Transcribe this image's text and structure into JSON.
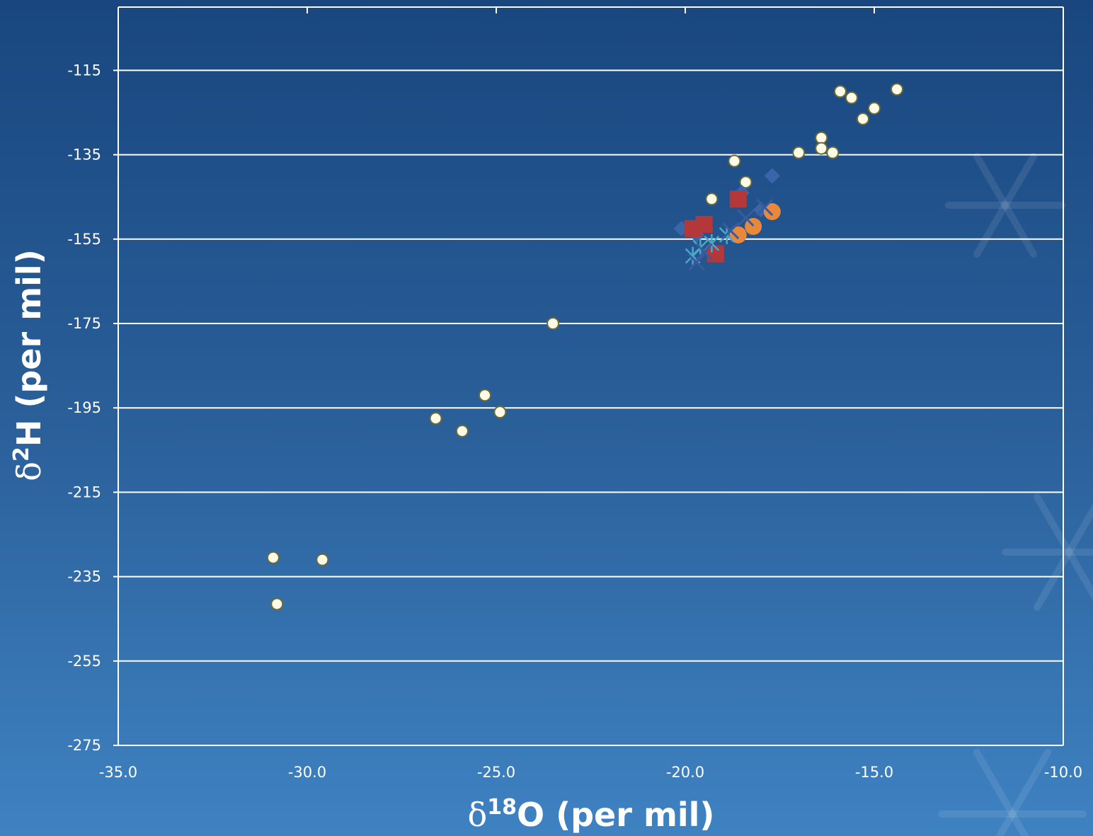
{
  "colors": {
    "axis": "#ffffff",
    "grid": "#ffffff",
    "point_fill": "#fffbe6",
    "point_stroke": "#6b6b3a",
    "diamond": "#3a65a8",
    "square": "#b4373a",
    "circle": "#e8883a",
    "star": "#4aa8c8",
    "cross": "#3a5aa0"
  },
  "chart_data": {
    "type": "scatter",
    "xlabel_delta": "δ",
    "xlabel_sup": "18",
    "xlabel_rest": "O (per mil)",
    "ylabel_delta": "δ",
    "ylabel_sup": "2",
    "ylabel_rest": "H (per mil)",
    "xlim": [
      -35.0,
      -10.0
    ],
    "ylim": [
      -275,
      -100
    ],
    "x_ticks": [
      -35.0,
      -30.0,
      -25.0,
      -20.0,
      -15.0,
      -10.0
    ],
    "x_tick_labels": [
      "-35.0",
      "-30.0",
      "-25.0",
      "-20.0",
      "-15.0",
      "-10.0"
    ],
    "y_ticks": [
      -115,
      -135,
      -155,
      -175,
      -195,
      -215,
      -235,
      -255,
      -275
    ],
    "y_tick_labels": [
      "-115",
      "-135",
      "-155",
      "-175",
      "-195",
      "-215",
      "-235",
      "-255",
      "-275"
    ],
    "grid": "horizontal",
    "series": [
      {
        "marker": "small-circle",
        "points": [
          [
            -15.9,
            -120
          ],
          [
            -15.6,
            -121.5
          ],
          [
            -14.4,
            -119.5
          ],
          [
            -15.0,
            -124
          ],
          [
            -15.3,
            -126.5
          ],
          [
            -16.4,
            -131
          ],
          [
            -16.4,
            -133.5
          ],
          [
            -16.1,
            -134.5
          ],
          [
            -17.0,
            -134.5
          ],
          [
            -18.7,
            -136.5
          ],
          [
            -18.4,
            -141.5
          ],
          [
            -19.3,
            -145.5
          ],
          [
            -23.5,
            -175
          ],
          [
            -25.3,
            -192
          ],
          [
            -26.6,
            -197.5
          ],
          [
            -24.9,
            -196
          ],
          [
            -25.9,
            -200.5
          ],
          [
            -30.9,
            -230.5
          ],
          [
            -29.6,
            -231
          ],
          [
            -30.8,
            -241.5
          ]
        ]
      },
      {
        "marker": "diamond",
        "points": [
          [
            -17.7,
            -140
          ],
          [
            -18.5,
            -144
          ],
          [
            -20.1,
            -152.5
          ],
          [
            -19.7,
            -154
          ],
          [
            -18.7,
            -153.5
          ],
          [
            -18.0,
            -148
          ]
        ]
      },
      {
        "marker": "square",
        "points": [
          [
            -18.6,
            -145.5
          ],
          [
            -19.5,
            -151.5
          ],
          [
            -19.8,
            -152.5
          ],
          [
            -19.2,
            -158.5
          ]
        ]
      },
      {
        "marker": "circle",
        "points": [
          [
            -17.7,
            -148.5
          ],
          [
            -18.2,
            -152
          ],
          [
            -18.6,
            -154
          ]
        ]
      },
      {
        "marker": "star",
        "points": [
          [
            -19.6,
            -157
          ],
          [
            -19.8,
            -159
          ],
          [
            -18.9,
            -154
          ],
          [
            -19.3,
            -156
          ]
        ]
      },
      {
        "marker": "cross",
        "points": [
          [
            -19.7,
            -160.5
          ],
          [
            -19.5,
            -158
          ],
          [
            -17.9,
            -147.5
          ],
          [
            -18.4,
            -150
          ],
          [
            -18.8,
            -153
          ]
        ]
      }
    ]
  }
}
